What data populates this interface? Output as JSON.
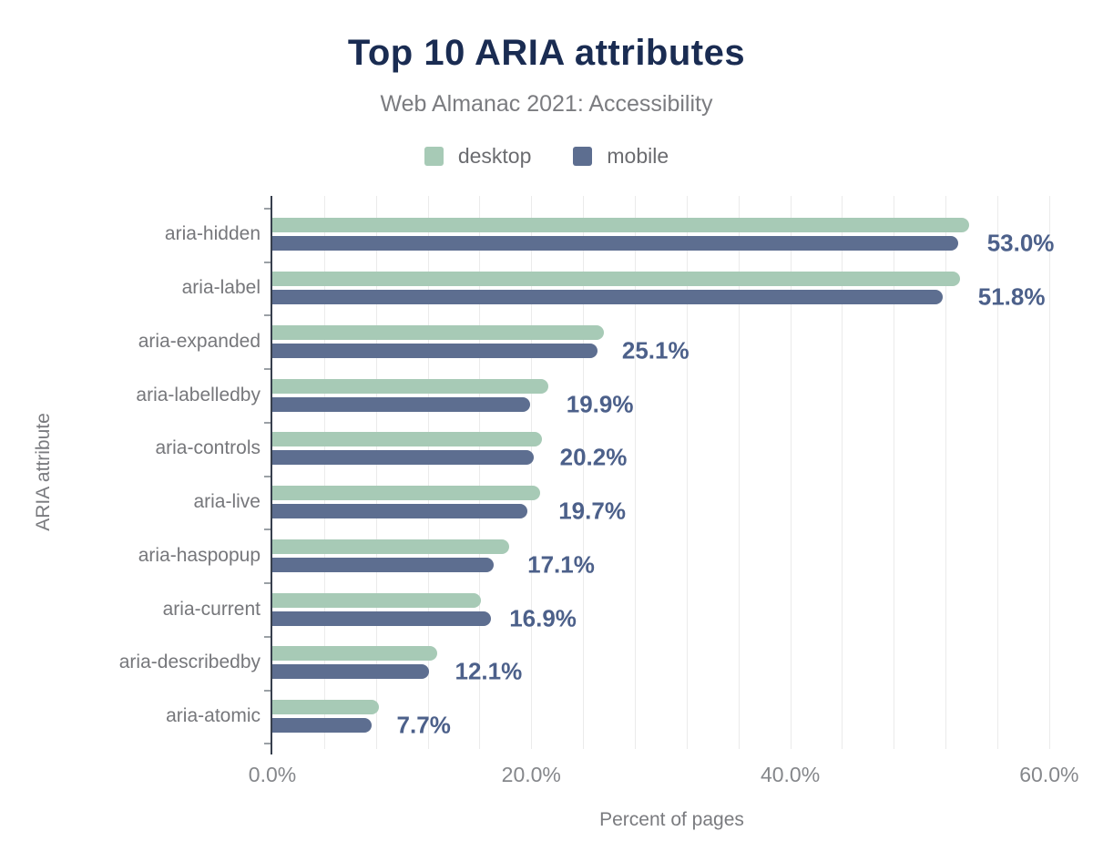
{
  "chart": {
    "title": "Top 10 ARIA attributes",
    "subtitle": "Web Almanac 2021: Accessibility",
    "xlabel": "Percent of pages",
    "ylabel": "ARIA attribute"
  },
  "chart_data": {
    "type": "bar",
    "orientation": "horizontal",
    "title": "Top 10 ARIA attributes",
    "subtitle": "Web Almanac 2021: Accessibility",
    "xlabel": "Percent of pages",
    "ylabel": "ARIA attribute",
    "categories": [
      "aria-hidden",
      "aria-label",
      "aria-expanded",
      "aria-labelledby",
      "aria-controls",
      "aria-live",
      "aria-haspopup",
      "aria-current",
      "aria-describedby",
      "aria-atomic"
    ],
    "series": [
      {
        "name": "desktop",
        "color": "#a7cab6",
        "values": [
          53.8,
          53.1,
          25.6,
          21.3,
          20.8,
          20.7,
          18.3,
          16.1,
          12.7,
          8.2
        ]
      },
      {
        "name": "mobile",
        "color": "#5d6e90",
        "values": [
          53.0,
          51.8,
          25.1,
          19.9,
          20.2,
          19.7,
          17.1,
          16.9,
          12.1,
          7.7
        ]
      }
    ],
    "data_labels": [
      "53.0%",
      "51.8%",
      "25.1%",
      "19.9%",
      "20.2%",
      "19.7%",
      "17.1%",
      "16.9%",
      "12.1%",
      "7.7%"
    ],
    "data_label_series": "mobile",
    "x_ticks": [
      {
        "value": 0,
        "label": "0.0%"
      },
      {
        "value": 20,
        "label": "20.0%"
      },
      {
        "value": 40,
        "label": "40.0%"
      },
      {
        "value": 60,
        "label": "60.0%"
      }
    ],
    "xlim": [
      0,
      61.7
    ],
    "grid_step": 4,
    "grid": "vertical minor gridlines",
    "legend_position": "top center"
  },
  "colors": {
    "background": "#ffffff",
    "title": "#1a2c52",
    "subtitle": "#7b7c80",
    "desktop_bar": "#a7cab6",
    "mobile_bar": "#5d6e90",
    "value_label": "#4c608a",
    "category_label": "#76777b",
    "axis_tick_label": "#85878b",
    "gridline": "#ebebeb",
    "y_axis_line": "#373f4d"
  }
}
